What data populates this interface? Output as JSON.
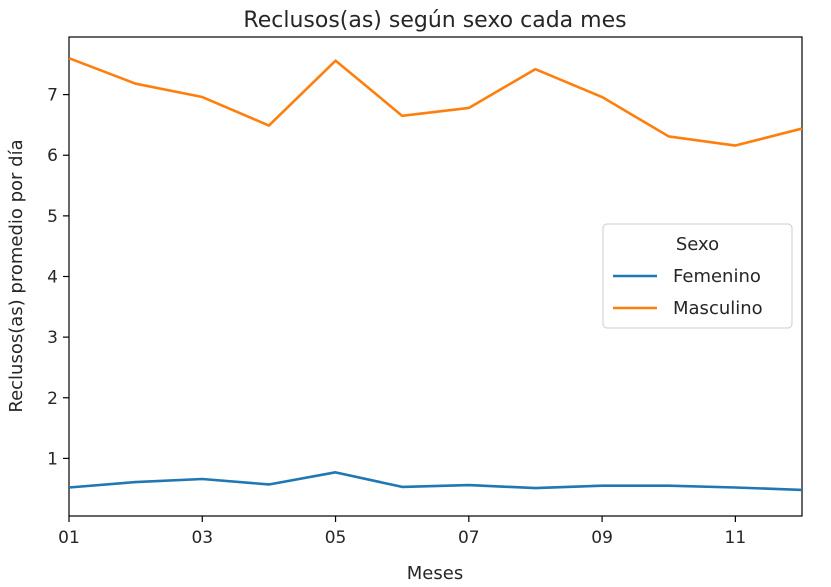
{
  "chart_data": {
    "type": "line",
    "title": "Reclusos(as) según sexo cada mes",
    "xlabel": "Meses",
    "ylabel": "Reclusos(as) promedio por día",
    "x": [
      "01",
      "02",
      "03",
      "04",
      "05",
      "06",
      "07",
      "08",
      "09",
      "10",
      "11",
      "12"
    ],
    "x_tick_labels": [
      "01",
      "03",
      "05",
      "07",
      "09",
      "11"
    ],
    "y_ticks": [
      1,
      2,
      3,
      4,
      5,
      6,
      7
    ],
    "xlim": [
      1,
      12
    ],
    "ylim": [
      0.05,
      7.95
    ],
    "grid": false,
    "legend": {
      "title": "Sexo",
      "placement": "center-right"
    },
    "series": [
      {
        "name": "Femenino",
        "color": "#1f77b4",
        "values": [
          0.52,
          0.61,
          0.66,
          0.57,
          0.77,
          0.53,
          0.56,
          0.51,
          0.55,
          0.55,
          0.52,
          0.48
        ]
      },
      {
        "name": "Masculino",
        "color": "#ff7f0e",
        "values": [
          7.6,
          7.18,
          6.96,
          6.49,
          7.56,
          6.65,
          6.78,
          7.42,
          6.96,
          6.31,
          6.16,
          6.44
        ]
      }
    ]
  }
}
